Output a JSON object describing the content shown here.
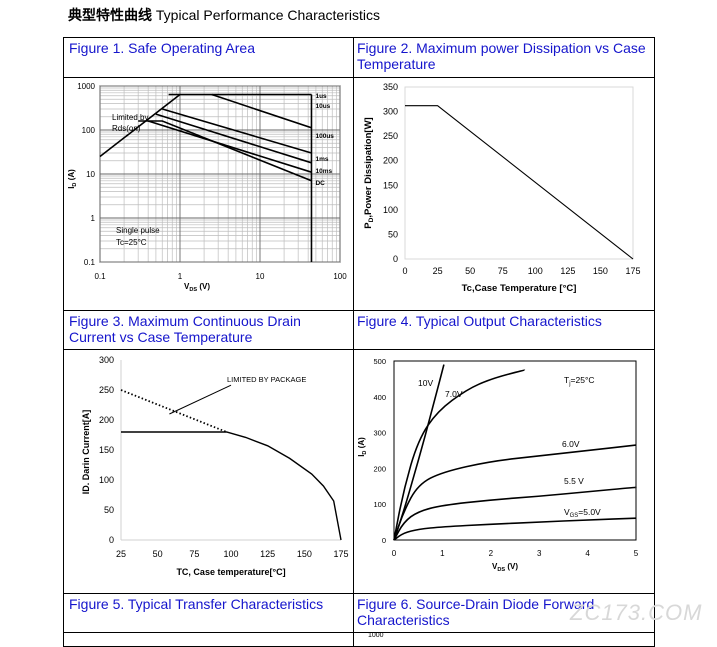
{
  "page": {
    "heading_cn": "典型特性曲线",
    "heading_en": "Typical Performance Characteristics",
    "watermark": "ZC173.COM"
  },
  "figures": {
    "f1": "Figure 1. Safe Operating Area",
    "f2": "Figure 2. Maximum power Dissipation vs Case Temperature",
    "f3": "Figure 3. Maximum Continuous Drain Current vs Case Temperature",
    "f4": "Figure 4. Typical Output Characteristics",
    "f5": "Figure 5. Typical Transfer Characteristics",
    "f6": "Figure 6. Source-Drain Diode Forward Characteristics"
  },
  "chart_data": [
    {
      "id": "soa",
      "type": "line",
      "x_scale": "log",
      "y_scale": "log",
      "xlim": [
        0.1,
        100
      ],
      "ylim": [
        0.1,
        1000
      ],
      "xticks": [
        "0.1",
        "1",
        "10",
        "100"
      ],
      "yticks": [
        "0.1",
        "1",
        "10",
        "100",
        "1000"
      ],
      "xlabel_main": "V",
      "xlabel_sub": "DS",
      "xlabel_unit": "(V)",
      "ylabel_main": "I",
      "ylabel_sub": "D",
      "ylabel_unit": "(A)",
      "annotations": {
        "limited1": "Limited by",
        "limited2": "Rds(on)",
        "pulse1": "Single pulse",
        "pulse2": "Tc=25°C"
      },
      "rdson_line": [
        [
          0.1,
          25
        ],
        [
          1.0,
          640
        ]
      ],
      "vmax": 44,
      "series": [
        {
          "name": "1us",
          "points": [
            [
              0.72,
              640
            ],
            [
              44,
              640
            ]
          ]
        },
        {
          "name": "10us",
          "points": [
            [
              2.5,
              640
            ],
            [
              44,
              112
            ]
          ]
        },
        {
          "name": "100us",
          "points": [
            [
              0.6,
              300
            ],
            [
              44,
              30
            ]
          ]
        },
        {
          "name": "1ms",
          "points": [
            [
              0.5,
              230
            ],
            [
              44,
              18
            ]
          ]
        },
        {
          "name": "10ms",
          "points": [
            [
              0.4,
              160
            ],
            [
              44,
              11
            ]
          ]
        },
        {
          "name": "DC",
          "points": [
            [
              0.3,
              160
            ],
            [
              0.6,
              160
            ],
            [
              44,
              7
            ]
          ]
        }
      ]
    },
    {
      "id": "pd",
      "type": "line",
      "xlim": [
        0,
        175
      ],
      "ylim": [
        0,
        350
      ],
      "xticks": [
        0,
        25,
        50,
        75,
        100,
        125,
        150,
        175
      ],
      "yticks": [
        0,
        50,
        100,
        150,
        200,
        250,
        300,
        350
      ],
      "xlabel": "Tc,Case Temperature [°C]",
      "ylabel_main": "P",
      "ylabel_sub": "D",
      "ylabel_rest": ",Power Dissipation[W]",
      "series": [
        {
          "points": [
            [
              0,
              312
            ],
            [
              25,
              312
            ],
            [
              175,
              0
            ]
          ]
        }
      ]
    },
    {
      "id": "id_tc",
      "type": "line",
      "xlim": [
        25,
        175
      ],
      "ylim": [
        0,
        300
      ],
      "xticks": [
        25,
        50,
        75,
        100,
        125,
        150,
        175
      ],
      "yticks": [
        0,
        50,
        100,
        150,
        200,
        250,
        300
      ],
      "xlabel": "TC, Case temperature[°C]",
      "ylabel": "ID. Darin Current[A]",
      "annotation": "LIMITED BY PACKAGE",
      "series": [
        {
          "style": "solid",
          "points": [
            [
              25,
              180
            ],
            [
              97,
              180
            ],
            [
              110,
              171
            ],
            [
              125,
              157
            ],
            [
              140,
              136
            ],
            [
              155,
              110
            ],
            [
              163,
              90
            ],
            [
              170,
              65
            ],
            [
              175,
              0
            ]
          ]
        },
        {
          "style": "dotted",
          "points": [
            [
              25,
              250
            ],
            [
              97,
              180
            ]
          ]
        }
      ]
    },
    {
      "id": "output",
      "type": "line",
      "xlim": [
        0,
        5
      ],
      "ylim": [
        0,
        500
      ],
      "xticks": [
        0,
        1,
        2,
        3,
        4,
        5
      ],
      "yticks": [
        0,
        100,
        200,
        300,
        400,
        500
      ],
      "xlabel_main": "V",
      "xlabel_sub": "DS",
      "xlabel_unit": "(V)",
      "ylabel_main": "I",
      "ylabel_sub": "D",
      "ylabel_unit": "(A)",
      "temp_label": "T",
      "temp_sub": "j",
      "temp_rest": "=25°C",
      "vgs_main": "V",
      "vgs_sub": "GS",
      "series": [
        {
          "name": "10V",
          "points": [
            [
              0,
              0
            ],
            [
              0.2,
              80
            ],
            [
              0.5,
              220
            ],
            [
              0.8,
              370
            ],
            [
              1.03,
              490
            ]
          ]
        },
        {
          "name": "7.0V",
          "points": [
            [
              0,
              0
            ],
            [
              0.2,
              140
            ],
            [
              0.5,
              280
            ],
            [
              0.9,
              360
            ],
            [
              1.5,
              420
            ],
            [
              2.0,
              450
            ],
            [
              2.7,
              475
            ]
          ]
        },
        {
          "name": "6.0V",
          "points": [
            [
              0,
              0
            ],
            [
              0.2,
              80
            ],
            [
              0.5,
              155
            ],
            [
              1.0,
              190
            ],
            [
              2.0,
              220
            ],
            [
              3.0,
              235
            ],
            [
              4.0,
              250
            ],
            [
              5.0,
              265
            ]
          ]
        },
        {
          "name": "5.5 V",
          "points": [
            [
              0,
              0
            ],
            [
              0.2,
              50
            ],
            [
              0.5,
              80
            ],
            [
              1.0,
              97
            ],
            [
              2.0,
              112
            ],
            [
              3.0,
              122
            ],
            [
              4.0,
              135
            ],
            [
              5.0,
              147
            ]
          ]
        },
        {
          "name": "=5.0V",
          "points": [
            [
              0,
              0
            ],
            [
              0.2,
              20
            ],
            [
              0.5,
              30
            ],
            [
              1.0,
              37
            ],
            [
              2.0,
              44
            ],
            [
              3.0,
              50
            ],
            [
              4.0,
              56
            ],
            [
              5.0,
              61
            ]
          ]
        }
      ]
    },
    {
      "id": "f6_partial",
      "type": "line",
      "yticks": [
        1000
      ]
    }
  ]
}
